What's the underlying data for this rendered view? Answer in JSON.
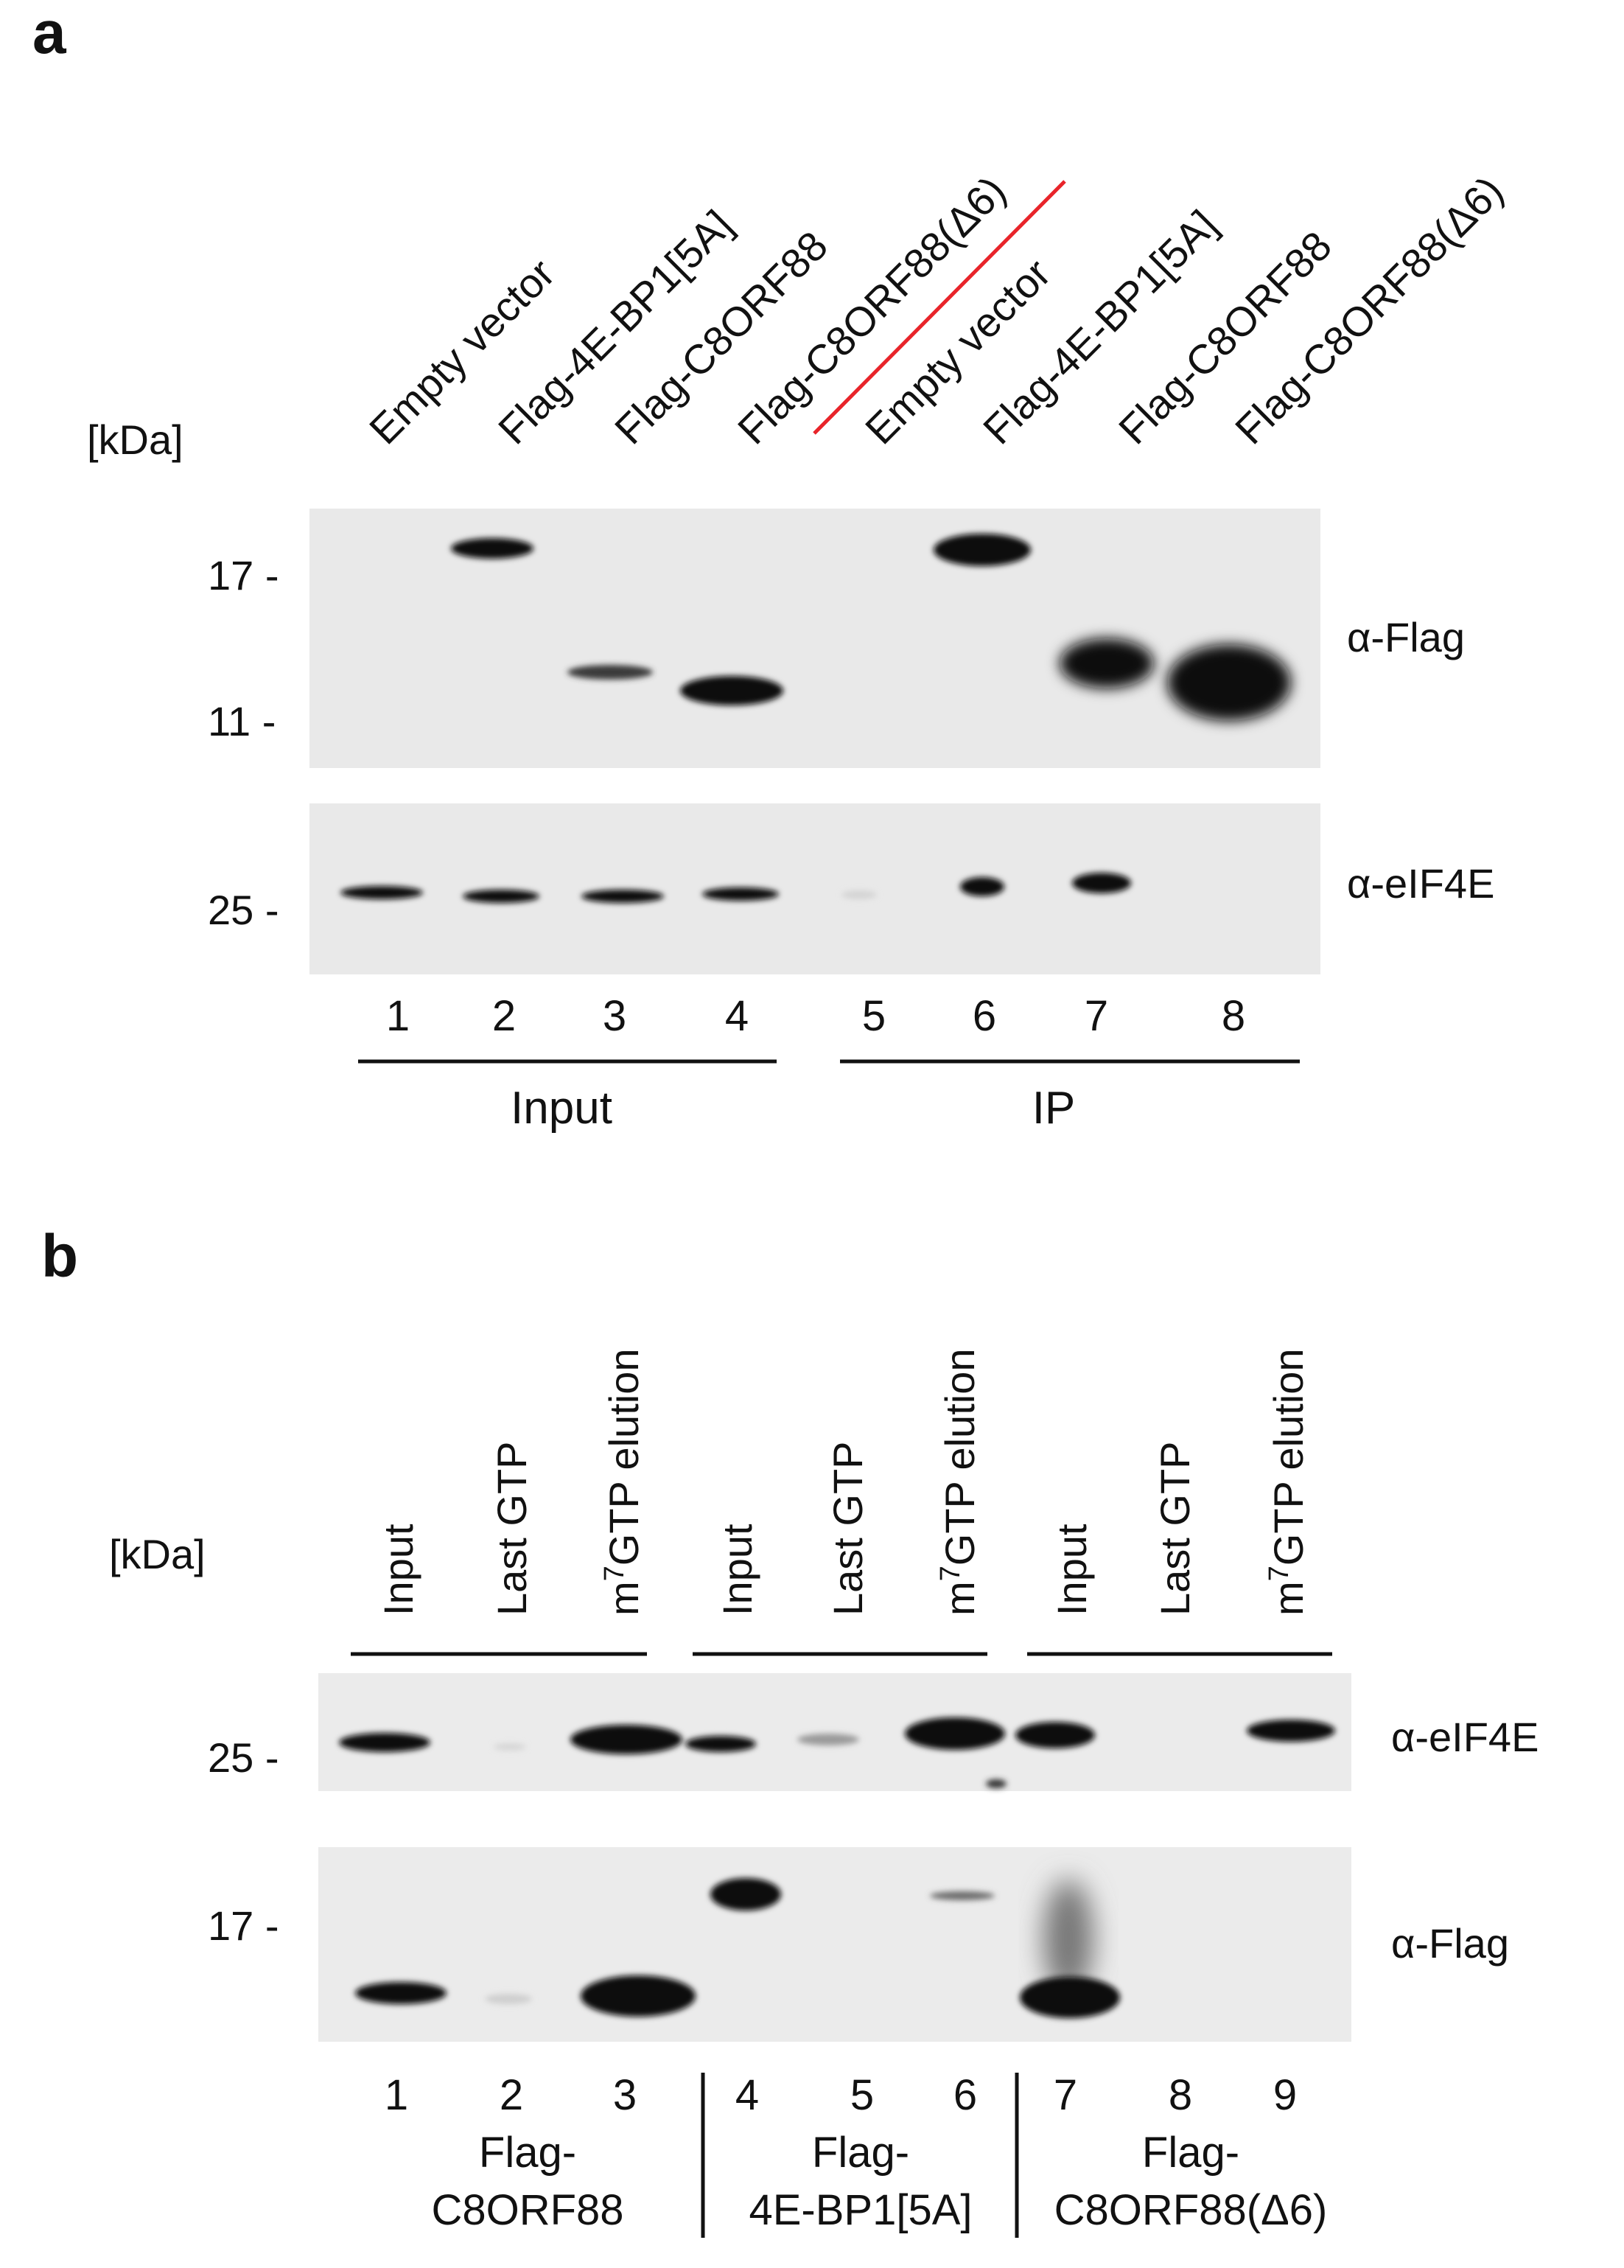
{
  "panel_a": {
    "letter": "a",
    "kda": "[kDa]",
    "lanes": [
      "Empty vector",
      "Flag-4E-BP1[5A]",
      "Flag-C8ORF88",
      "Flag-C8ORF88(Δ6)",
      "Empty vector",
      "Flag-4E-BP1[5A]",
      "Flag-C8ORF88",
      "Flag-C8ORF88(Δ6)"
    ],
    "markers_top": [
      "17 -",
      "11 -"
    ],
    "marker_bottom": "25 -",
    "blot_top": "α-Flag",
    "blot_bottom": "α-eIF4E",
    "lane_numbers": [
      "1",
      "2",
      "3",
      "4",
      "5",
      "6",
      "7",
      "8"
    ],
    "group_left": "Input",
    "group_right": "IP",
    "divider_color": "#e8242a"
  },
  "panel_b": {
    "letter": "b",
    "kda": "[kDa]",
    "lane_labels": [
      "Input",
      "Last GTP",
      "m7GTP elution",
      "Input",
      "Last GTP",
      "m7GTP elution",
      "Input",
      "Last GTP",
      "m7GTP elution"
    ],
    "marker_top": "25 -",
    "marker_bottom": "17 -",
    "blot_top": "α-eIF4E",
    "blot_bottom": "α-Flag",
    "lane_numbers": [
      "1",
      "2",
      "3",
      "4",
      "5",
      "6",
      "7",
      "8",
      "9"
    ],
    "groups": [
      {
        "line1": "Flag-",
        "line2": "C8ORF88"
      },
      {
        "line1": "Flag-",
        "line2": "4E-BP1[5A]"
      },
      {
        "line1": "Flag-",
        "line2": "C8ORF88(Δ6)"
      }
    ]
  }
}
